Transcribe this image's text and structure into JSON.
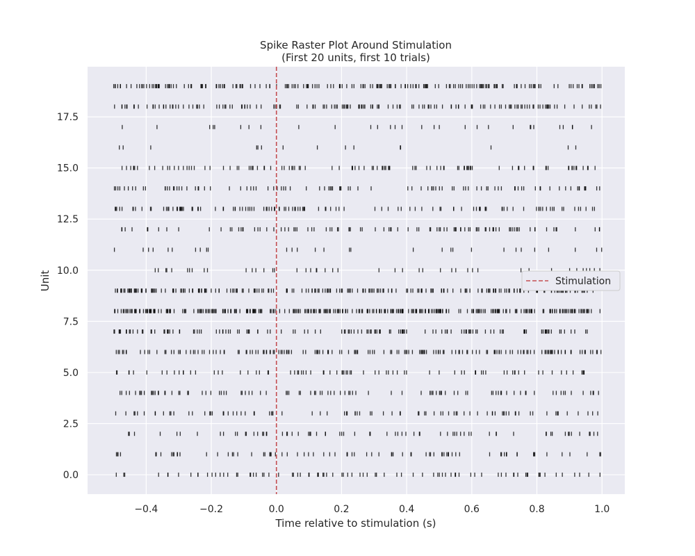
{
  "chart_data": {
    "type": "scatter",
    "marker": "vertical-line",
    "title": "Spike Raster Plot Around Stimulation",
    "subtitle": "(First 20 units, first 10 trials)",
    "xlabel": "Time relative to stimulation (s)",
    "ylabel": "Unit",
    "xlim": [
      -0.58,
      1.07
    ],
    "ylim": [
      -0.95,
      19.95
    ],
    "xticks": [
      -0.4,
      -0.2,
      0.0,
      0.2,
      0.4,
      0.6,
      0.8,
      1.0
    ],
    "xtick_labels": [
      "−0.4",
      "−0.2",
      "0.0",
      "0.2",
      "0.4",
      "0.6",
      "0.8",
      "1.0"
    ],
    "yticks": [
      0,
      2.5,
      5,
      7.5,
      10,
      12.5,
      15,
      17.5
    ],
    "ytick_labels": [
      "0.0",
      "2.5",
      "5.0",
      "7.5",
      "10.0",
      "12.5",
      "15.0",
      "17.5"
    ],
    "grid": true,
    "background_color": "#eaeaf2",
    "spike_color": "#000000",
    "stimulation_line": {
      "x": 0.0,
      "style": "dashed",
      "color": "#c44e52"
    },
    "legend": {
      "entries": [
        "Stimulation"
      ],
      "placement": "center-right"
    },
    "time_window": [
      -0.5,
      1.0
    ],
    "units": [
      0,
      1,
      2,
      3,
      4,
      5,
      6,
      7,
      8,
      9,
      10,
      11,
      12,
      13,
      14,
      15,
      16,
      17,
      18,
      19
    ],
    "spikes_per_unit_approx": [
      85,
      80,
      70,
      85,
      95,
      80,
      160,
      130,
      300,
      210,
      45,
      30,
      95,
      115,
      95,
      100,
      15,
      30,
      150,
      190
    ]
  }
}
